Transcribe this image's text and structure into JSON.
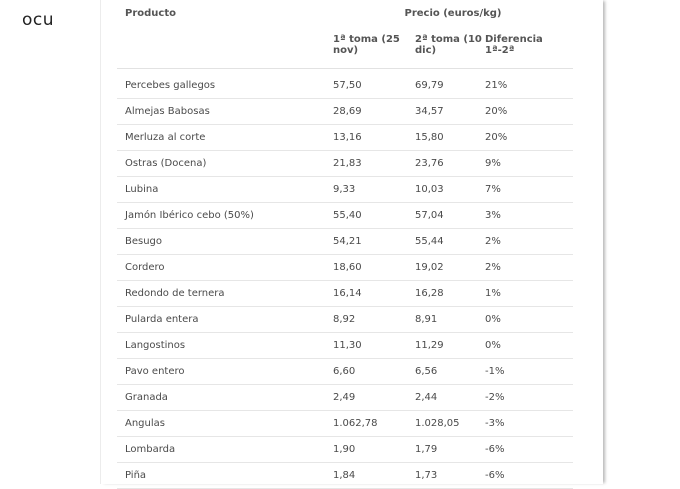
{
  "brand": "ocu",
  "table": {
    "col_product": "Producto",
    "col_price_group": "Precio (euros/kg)",
    "col_first": "1ª toma (25 nov)",
    "col_second": "2ª toma (10 dic)",
    "col_diff": "Diferencia 1ª-2ª",
    "rows": [
      {
        "product": "Percebes gallegos",
        "first": "57,50",
        "second": "69,79",
        "diff": "21%"
      },
      {
        "product": "Almejas Babosas",
        "first": "28,69",
        "second": "34,57",
        "diff": "20%"
      },
      {
        "product": "Merluza al corte",
        "first": "13,16",
        "second": "15,80",
        "diff": "20%"
      },
      {
        "product": "Ostras (Docena)",
        "first": "21,83",
        "second": "23,76",
        "diff": "9%"
      },
      {
        "product": "Lubina",
        "first": "9,33",
        "second": "10,03",
        "diff": "7%"
      },
      {
        "product": "Jamón Ibérico cebo (50%)",
        "first": "55,40",
        "second": "57,04",
        "diff": "3%"
      },
      {
        "product": "Besugo",
        "first": "54,21",
        "second": "55,44",
        "diff": "2%"
      },
      {
        "product": "Cordero",
        "first": "18,60",
        "second": "19,02",
        "diff": "2%"
      },
      {
        "product": "Redondo de ternera",
        "first": "16,14",
        "second": "16,28",
        "diff": "1%"
      },
      {
        "product": "Pularda entera",
        "first": "8,92",
        "second": "8,91",
        "diff": "0%"
      },
      {
        "product": "Langostinos",
        "first": "11,30",
        "second": "11,29",
        "diff": "0%"
      },
      {
        "product": "Pavo entero",
        "first": "6,60",
        "second": "6,56",
        "diff": "-1%"
      },
      {
        "product": "Granada",
        "first": "2,49",
        "second": "2,44",
        "diff": "-2%"
      },
      {
        "product": "Angulas",
        "first": "1.062,78",
        "second": "1.028,05",
        "diff": "-3%"
      },
      {
        "product": "Lombarda",
        "first": "1,90",
        "second": "1,79",
        "diff": "-6%"
      },
      {
        "product": "Piña",
        "first": "1,84",
        "second": "1,73",
        "diff": "-6%"
      }
    ]
  }
}
